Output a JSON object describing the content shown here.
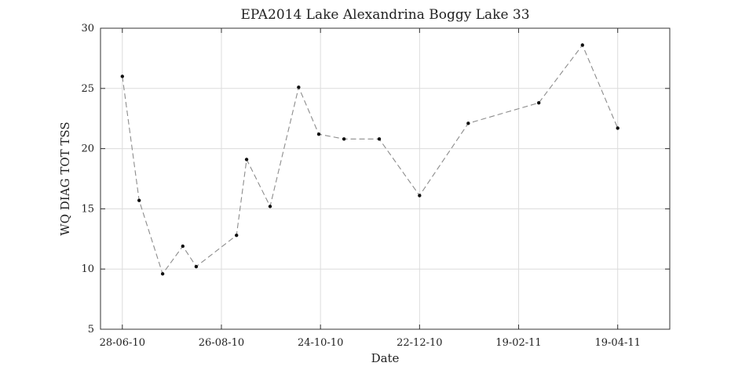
{
  "chart_data": {
    "type": "line",
    "title": "EPA2014 Lake Alexandrina Boggy Lake 33",
    "xlabel": "Date",
    "ylabel": "WQ DIAG TOT TSS",
    "ylim": [
      5,
      30
    ],
    "xlim": [
      "2010-06-15",
      "2011-05-20"
    ],
    "grid": true,
    "line_style": "dashed",
    "colors": {
      "line": "#8c8c8c",
      "marker": "#111111",
      "grid": "#dcdcdc",
      "axes": "#333333"
    },
    "x_ticks": [
      {
        "date": "2010-06-28",
        "label": "28-06-10"
      },
      {
        "date": "2010-08-26",
        "label": "26-08-10"
      },
      {
        "date": "2010-10-24",
        "label": "24-10-10"
      },
      {
        "date": "2010-12-22",
        "label": "22-12-10"
      },
      {
        "date": "2011-02-19",
        "label": "19-02-11"
      },
      {
        "date": "2011-04-19",
        "label": "19-04-11"
      }
    ],
    "y_ticks": [
      5,
      10,
      15,
      20,
      25,
      30
    ],
    "series": [
      {
        "points": [
          {
            "x": "2010-06-28",
            "y": 26.0
          },
          {
            "x": "2010-07-08",
            "y": 15.7
          },
          {
            "x": "2010-07-22",
            "y": 9.6
          },
          {
            "x": "2010-08-03",
            "y": 11.9
          },
          {
            "x": "2010-08-11",
            "y": 10.2
          },
          {
            "x": "2010-09-04",
            "y": 12.8
          },
          {
            "x": "2010-09-10",
            "y": 19.1
          },
          {
            "x": "2010-09-24",
            "y": 15.2
          },
          {
            "x": "2010-10-11",
            "y": 25.1
          },
          {
            "x": "2010-10-23",
            "y": 21.2
          },
          {
            "x": "2010-11-07",
            "y": 20.8
          },
          {
            "x": "2010-11-28",
            "y": 20.8
          },
          {
            "x": "2010-12-22",
            "y": 16.1
          },
          {
            "x": "2011-01-20",
            "y": 22.1
          },
          {
            "x": "2011-03-03",
            "y": 23.8
          },
          {
            "x": "2011-03-29",
            "y": 28.6
          },
          {
            "x": "2011-04-19",
            "y": 21.7
          }
        ]
      }
    ]
  }
}
